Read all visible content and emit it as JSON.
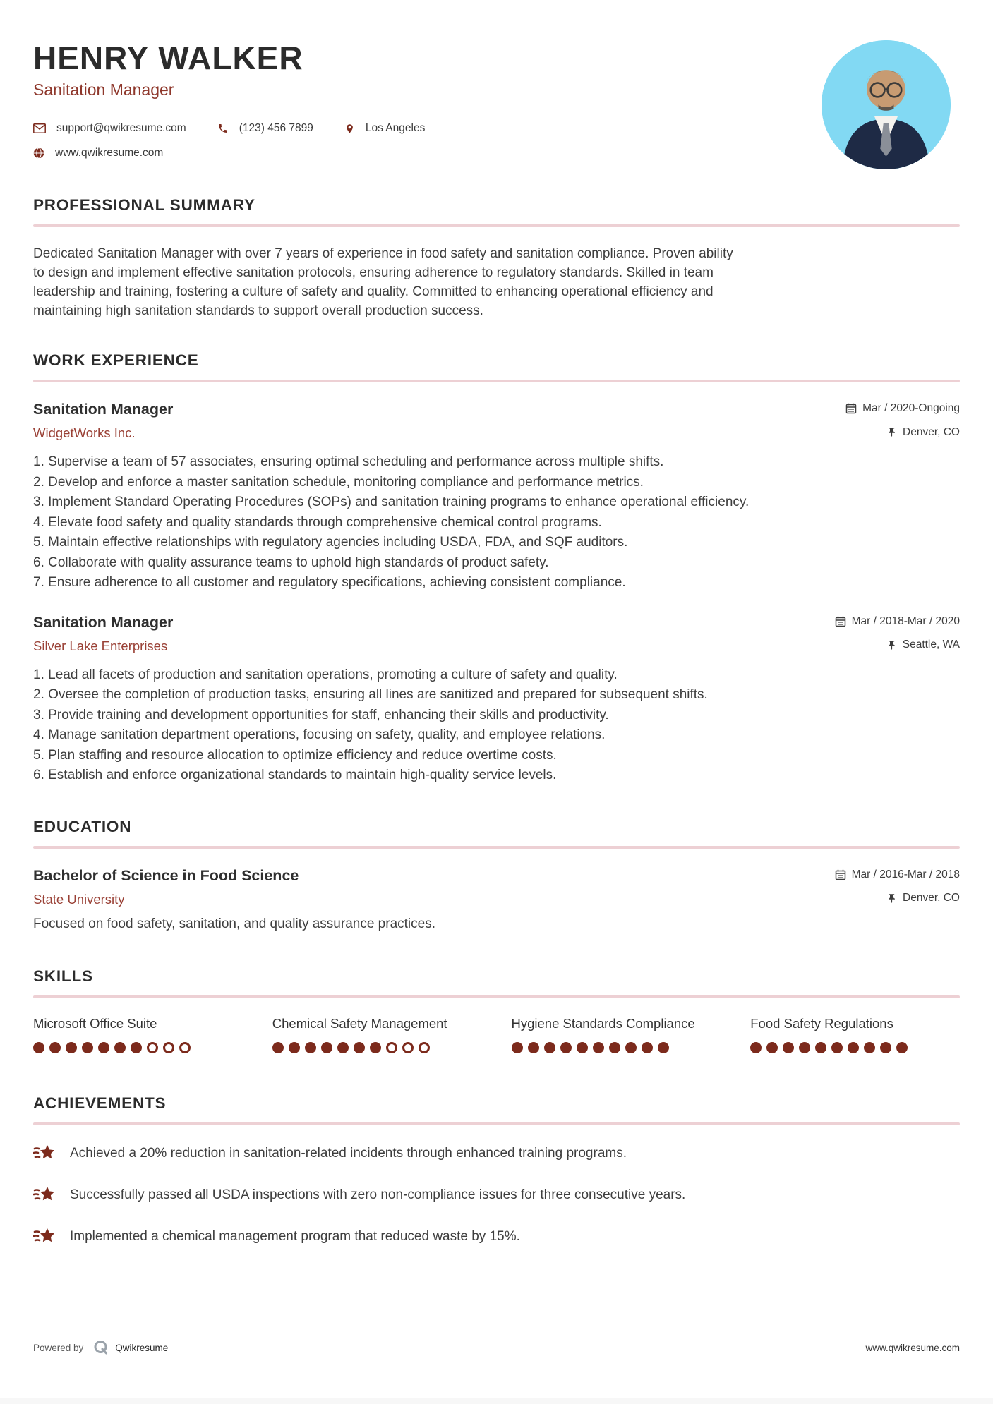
{
  "header": {
    "name": "HENRY WALKER",
    "title": "Sanitation Manager",
    "contact": {
      "email": "support@qwikresume.com",
      "phone": "(123) 456 7899",
      "location": "Los Angeles",
      "website": "www.qwikresume.com"
    }
  },
  "sections": {
    "summary": {
      "heading": "PROFESSIONAL SUMMARY",
      "text": "Dedicated Sanitation Manager with over 7 years of experience in food safety and sanitation compliance. Proven ability to design and implement effective sanitation protocols, ensuring adherence to regulatory standards. Skilled in team leadership and training, fostering a culture of safety and quality. Committed to enhancing operational efficiency and maintaining high sanitation standards to support overall production success."
    },
    "experience": {
      "heading": "WORK EXPERIENCE",
      "jobs": [
        {
          "title": "Sanitation Manager",
          "company": "WidgetWorks Inc.",
          "dates": "Mar / 2020-Ongoing",
          "location": "Denver, CO",
          "bullets": [
            "Supervise a team of 57 associates, ensuring optimal scheduling and performance across multiple shifts.",
            "Develop and enforce a master sanitation schedule, monitoring compliance and performance metrics.",
            "Implement Standard Operating Procedures (SOPs) and sanitation training programs to enhance operational efficiency.",
            "Elevate food safety and quality standards through comprehensive chemical control programs.",
            "Maintain effective relationships with regulatory agencies including USDA, FDA, and SQF auditors.",
            "Collaborate with quality assurance teams to uphold high standards of product safety.",
            "Ensure adherence to all customer and regulatory specifications, achieving consistent compliance."
          ]
        },
        {
          "title": "Sanitation Manager",
          "company": "Silver Lake Enterprises",
          "dates": "Mar / 2018-Mar / 2020",
          "location": "Seattle, WA",
          "bullets": [
            "Lead all facets of production and sanitation operations, promoting a culture of safety and quality.",
            "Oversee the completion of production tasks, ensuring all lines are sanitized and prepared for subsequent shifts.",
            "Provide training and development opportunities for staff, enhancing their skills and productivity.",
            "Manage sanitation department operations, focusing on safety, quality, and employee relations.",
            "Plan staffing and resource allocation to optimize efficiency and reduce overtime costs.",
            "Establish and enforce organizational standards to maintain high-quality service levels."
          ]
        }
      ]
    },
    "education": {
      "heading": "EDUCATION",
      "entry": {
        "degree": "Bachelor of Science in Food Science",
        "school": "State University",
        "dates": "Mar / 2016-Mar / 2018",
        "location": "Denver, CO",
        "description": "Focused on food safety, sanitation, and quality assurance practices."
      }
    },
    "skills": {
      "heading": "SKILLS",
      "items": [
        {
          "name": "Microsoft Office Suite",
          "rating": 7,
          "max": 10
        },
        {
          "name": "Chemical Safety Management",
          "rating": 7,
          "max": 10
        },
        {
          "name": "Hygiene Standards Compliance",
          "rating": 10,
          "max": 10
        },
        {
          "name": "Food Safety Regulations",
          "rating": 10,
          "max": 10
        }
      ]
    },
    "achievements": {
      "heading": "ACHIEVEMENTS",
      "items": [
        "Achieved a 20% reduction in sanitation-related incidents through enhanced training programs.",
        "Successfully passed all USDA inspections with zero non-compliance issues for three consecutive years.",
        "Implemented a chemical management program that reduced waste by 15%."
      ]
    }
  },
  "footer": {
    "powered_by": "Powered by",
    "brand": "Qwikresume",
    "website": "www.qwikresume.com"
  },
  "icons": {
    "email": "envelope-icon",
    "phone": "phone-icon",
    "location": "map-pin-icon",
    "website": "globe-icon",
    "dates": "calendar-icon",
    "place": "push-pin-icon",
    "achievement": "shooting-star-icon",
    "brand": "q-logo"
  },
  "colors": {
    "accent_text": "#9a4136",
    "subtitle": "#8e372b",
    "icon_red": "#7c2a1c",
    "dot_filled": "#7c2a1c",
    "divider": "#edd0d4",
    "heading": "#2c2c2c",
    "photo_background": "#82d9f3"
  }
}
